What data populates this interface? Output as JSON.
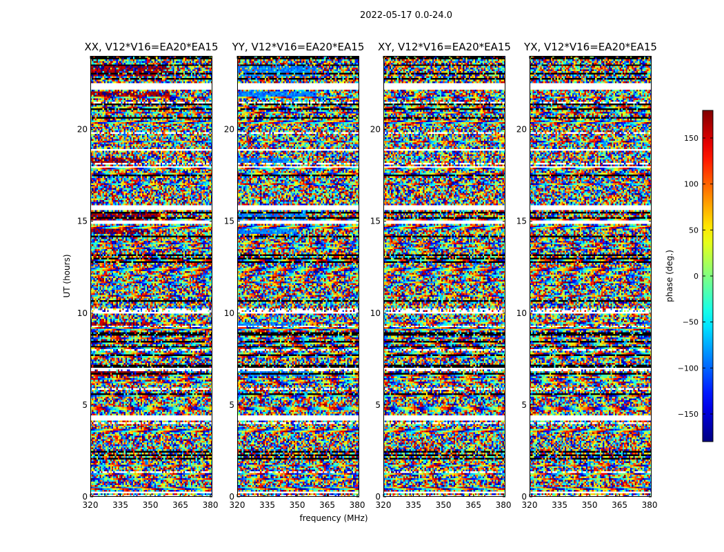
{
  "chart_data": {
    "type": "heatmap",
    "title": "2022-05-17 0.0-24.0",
    "xlabel": "frequency (MHz)",
    "ylabel": "UT (hours)",
    "xlim": [
      320,
      381
    ],
    "ylim": [
      0,
      24
    ],
    "xticks": [
      "320",
      "335",
      "350",
      "365",
      "380"
    ],
    "xtick_values": [
      320,
      335,
      350,
      365,
      380
    ],
    "yticks": [
      "0",
      "5",
      "10",
      "15",
      "20"
    ],
    "ytick_values": [
      0,
      5,
      10,
      15,
      20
    ],
    "panels": [
      {
        "title": "XX, V12*V16=EA20*EA15",
        "coherent_phase": 170,
        "band_level": 0.8
      },
      {
        "title": "YY, V12*V16=EA20*EA15",
        "coherent_phase": -90,
        "band_level": 0.8
      },
      {
        "title": "XY, V12*V16=EA20*EA15",
        "coherent_phase": null,
        "band_level": 0.05
      },
      {
        "title": "YX, V12*V16=EA20*EA15",
        "coherent_phase": null,
        "band_level": 0.05
      }
    ],
    "coherent_bands": [
      {
        "start": 22.9,
        "end": 23.55,
        "fmax": 360
      },
      {
        "start": 21.75,
        "end": 22.05,
        "fmax": 360
      },
      {
        "start": 18.15,
        "end": 18.45,
        "fmax": 345
      },
      {
        "start": 15.05,
        "end": 15.45,
        "fmax": 355
      },
      {
        "start": 14.3,
        "end": 14.55,
        "fmax": 350
      },
      {
        "start": 9.3,
        "end": 9.5,
        "fmax": 350
      },
      {
        "start": 6.6,
        "end": 6.85,
        "fmax": 360
      }
    ],
    "gaps": [
      {
        "start": 22.15,
        "end": 22.5
      },
      {
        "start": 15.6,
        "end": 15.85
      },
      {
        "start": 14.9,
        "end": 15.0
      },
      {
        "start": 18.8,
        "end": 18.95
      },
      {
        "start": 17.9,
        "end": 18.0
      },
      {
        "start": 10.0,
        "end": 10.08
      },
      {
        "start": 6.95,
        "end": 7.05
      },
      {
        "start": 4.15,
        "end": 4.45
      },
      {
        "start": 0.15,
        "end": 0.3
      }
    ],
    "colorbar": {
      "label": "phase (deg.)",
      "range": [
        -180,
        180
      ],
      "ticks": [
        "150",
        "100",
        "50",
        "0",
        "−50",
        "−100",
        "−150"
      ],
      "tick_values": [
        150,
        100,
        50,
        0,
        -50,
        -100,
        -150
      ],
      "colormap": "jet"
    }
  }
}
